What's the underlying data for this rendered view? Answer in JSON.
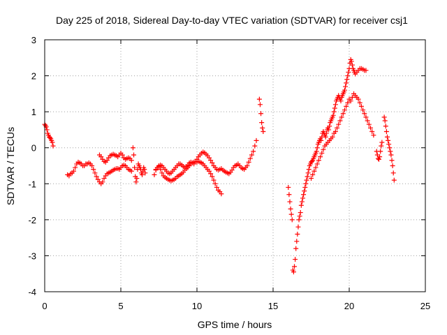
{
  "chart_data": {
    "type": "scatter",
    "title": "Day 225 of 2018, Sidereal Day-to-day VTEC variation (SDTVAR) for receiver csj1",
    "xlabel": "GPS time / hours",
    "ylabel": "SDTVAR / TECUs",
    "xlim": [
      0,
      25
    ],
    "ylim": [
      -4,
      3
    ],
    "xticks": [
      0,
      5,
      10,
      15,
      20,
      25
    ],
    "yticks": [
      -4,
      -3,
      -2,
      -1,
      0,
      1,
      2,
      3
    ],
    "grid": true,
    "marker": "+",
    "series": [
      {
        "name": "csj1",
        "color": "#ff0000",
        "x": [
          0.0,
          0.05,
          0.1,
          0.15,
          0.2,
          0.25,
          0.3,
          0.35,
          0.4,
          0.45,
          0.5,
          0.55,
          1.5,
          1.6,
          1.7,
          1.8,
          1.9,
          2.0,
          2.1,
          2.2,
          2.3,
          2.4,
          2.5,
          2.6,
          2.7,
          2.8,
          2.9,
          3.0,
          3.1,
          3.2,
          3.3,
          3.4,
          3.5,
          3.6,
          3.7,
          3.8,
          3.9,
          4.0,
          4.1,
          4.2,
          4.3,
          4.4,
          4.5,
          4.6,
          4.7,
          4.8,
          4.9,
          5.0,
          5.1,
          5.2,
          5.3,
          5.4,
          5.5,
          5.6,
          5.7,
          3.6,
          3.7,
          3.8,
          3.9,
          4.0,
          4.1,
          4.2,
          4.3,
          4.4,
          4.5,
          4.6,
          4.7,
          4.8,
          4.9,
          5.0,
          5.1,
          5.2,
          5.3,
          5.4,
          5.5,
          5.6,
          5.7,
          5.8,
          5.85,
          5.9,
          5.95,
          6.0,
          6.05,
          6.1,
          6.15,
          6.2,
          6.25,
          6.3,
          6.35,
          6.4,
          6.45,
          6.5,
          6.55,
          6.6,
          7.2,
          7.3,
          7.4,
          7.5,
          7.6,
          7.7,
          7.8,
          7.9,
          8.0,
          8.1,
          8.2,
          8.3,
          8.4,
          8.5,
          8.6,
          8.7,
          8.8,
          8.9,
          9.0,
          9.1,
          9.2,
          9.3,
          9.4,
          9.5,
          9.6,
          9.7,
          9.8,
          9.9,
          7.3,
          7.4,
          7.5,
          7.6,
          7.7,
          7.8,
          7.9,
          8.0,
          8.1,
          8.2,
          8.3,
          8.4,
          8.5,
          8.6,
          8.7,
          8.8,
          8.9,
          9.0,
          9.1,
          9.2,
          9.3,
          9.4,
          9.5,
          9.6,
          9.7,
          9.8,
          10.0,
          10.1,
          10.2,
          10.3,
          10.4,
          10.5,
          10.6,
          10.7,
          10.8,
          10.9,
          11.0,
          11.1,
          11.2,
          11.3,
          11.4,
          11.5,
          11.6,
          10.0,
          10.1,
          10.2,
          10.3,
          10.4,
          10.5,
          10.6,
          10.7,
          10.8,
          10.9,
          11.0,
          11.1,
          11.2,
          11.3,
          11.4,
          11.5,
          11.6,
          11.7,
          11.8,
          11.9,
          12.0,
          12.1,
          12.2,
          12.3,
          12.4,
          12.5,
          12.6,
          12.7,
          12.8,
          12.9,
          13.0,
          13.1,
          13.2,
          13.3,
          13.4,
          13.5,
          13.6,
          13.7,
          13.8,
          13.9,
          14.1,
          14.15,
          14.2,
          14.25,
          14.3,
          14.35,
          16.0,
          16.05,
          16.1,
          16.15,
          16.2,
          16.25,
          16.3,
          16.35,
          16.4,
          16.45,
          16.5,
          16.55,
          16.6,
          16.65,
          16.7,
          16.75,
          16.8,
          16.85,
          16.9,
          16.95,
          17.0,
          17.05,
          17.1,
          17.15,
          17.2,
          17.25,
          17.3,
          17.35,
          17.4,
          17.45,
          17.5,
          17.55,
          17.6,
          17.65,
          17.7,
          17.75,
          17.8,
          17.85,
          17.9,
          17.95,
          18.0,
          18.05,
          18.1,
          18.15,
          18.2,
          18.25,
          18.3,
          18.35,
          18.4,
          18.45,
          18.5,
          18.55,
          18.6,
          18.65,
          18.7,
          18.75,
          18.8,
          18.85,
          18.9,
          18.95,
          19.0,
          17.5,
          17.6,
          17.7,
          17.8,
          17.9,
          18.0,
          18.1,
          18.2,
          18.3,
          18.4,
          18.5,
          18.6,
          18.7,
          18.8,
          18.9,
          19.0,
          19.05,
          19.1,
          19.15,
          19.2,
          19.25,
          19.3,
          19.35,
          19.4,
          19.45,
          19.5,
          19.55,
          19.6,
          19.65,
          19.7,
          19.75,
          19.8,
          19.85,
          19.9,
          19.95,
          20.0,
          19.1,
          19.2,
          19.3,
          19.4,
          19.5,
          19.6,
          19.7,
          19.8,
          19.9,
          20.0,
          20.05,
          20.1,
          20.15,
          20.2,
          20.25,
          20.3,
          20.35,
          20.4,
          20.5,
          20.6,
          20.7,
          20.8,
          20.9,
          21.0,
          21.1,
          20.1,
          20.2,
          20.3,
          20.4,
          20.5,
          20.6,
          20.7,
          20.8,
          20.9,
          21.0,
          21.1,
          21.2,
          21.3,
          21.4,
          21.5,
          21.6,
          21.8,
          21.85,
          21.9,
          21.95,
          22.0,
          22.05,
          22.1,
          22.15,
          22.3,
          22.35,
          22.4,
          22.45,
          22.5,
          22.55,
          22.6,
          22.65,
          22.7,
          22.75,
          22.8,
          22.85,
          22.9,
          22.95
        ],
        "y": [
          0.65,
          0.62,
          0.58,
          0.5,
          0.4,
          0.35,
          0.3,
          0.28,
          0.25,
          0.2,
          0.15,
          0.05,
          -0.75,
          -0.78,
          -0.72,
          -0.7,
          -0.65,
          -0.55,
          -0.45,
          -0.4,
          -0.42,
          -0.45,
          -0.5,
          -0.5,
          -0.45,
          -0.45,
          -0.42,
          -0.45,
          -0.5,
          -0.6,
          -0.7,
          -0.8,
          -0.88,
          -0.95,
          -1.0,
          -0.95,
          -0.85,
          -0.78,
          -0.72,
          -0.7,
          -0.68,
          -0.65,
          -0.62,
          -0.6,
          -0.58,
          -0.58,
          -0.6,
          -0.55,
          -0.5,
          -0.48,
          -0.5,
          -0.55,
          -0.6,
          -0.62,
          -0.65,
          -0.2,
          -0.25,
          -0.32,
          -0.38,
          -0.4,
          -0.35,
          -0.28,
          -0.22,
          -0.2,
          -0.18,
          -0.2,
          -0.22,
          -0.25,
          -0.2,
          -0.15,
          -0.2,
          -0.28,
          -0.32,
          -0.3,
          -0.28,
          -0.3,
          -0.35,
          0.0,
          -0.2,
          -0.55,
          -0.8,
          -0.95,
          -0.85,
          -0.6,
          -0.45,
          -0.5,
          -0.55,
          -0.6,
          -0.7,
          -0.75,
          -0.65,
          -0.55,
          -0.6,
          -0.7,
          -0.75,
          -0.6,
          -0.55,
          -0.52,
          -0.6,
          -0.7,
          -0.78,
          -0.82,
          -0.85,
          -0.88,
          -0.9,
          -0.92,
          -0.9,
          -0.88,
          -0.85,
          -0.8,
          -0.78,
          -0.75,
          -0.72,
          -0.68,
          -0.62,
          -0.58,
          -0.55,
          -0.5,
          -0.45,
          -0.42,
          -0.4,
          -0.38,
          -0.62,
          -0.55,
          -0.5,
          -0.48,
          -0.5,
          -0.55,
          -0.6,
          -0.65,
          -0.7,
          -0.72,
          -0.7,
          -0.65,
          -0.6,
          -0.55,
          -0.5,
          -0.45,
          -0.45,
          -0.48,
          -0.52,
          -0.55,
          -0.52,
          -0.48,
          -0.42,
          -0.4,
          -0.42,
          -0.45,
          -0.32,
          -0.25,
          -0.2,
          -0.15,
          -0.12,
          -0.14,
          -0.18,
          -0.22,
          -0.28,
          -0.35,
          -0.42,
          -0.5,
          -0.55,
          -0.6,
          -0.62,
          -0.6,
          -0.58,
          -0.4,
          -0.38,
          -0.4,
          -0.42,
          -0.45,
          -0.5,
          -0.55,
          -0.6,
          -0.65,
          -0.72,
          -0.8,
          -0.9,
          -1.0,
          -1.1,
          -1.18,
          -1.22,
          -1.28,
          -0.62,
          -0.65,
          -0.68,
          -0.7,
          -0.72,
          -0.68,
          -0.62,
          -0.55,
          -0.5,
          -0.48,
          -0.45,
          -0.5,
          -0.55,
          -0.58,
          -0.6,
          -0.55,
          -0.5,
          -0.4,
          -0.3,
          -0.2,
          -0.1,
          0.05,
          0.2,
          1.35,
          1.2,
          0.95,
          0.7,
          0.55,
          0.45,
          -1.1,
          -1.3,
          -1.5,
          -1.7,
          -1.85,
          -2.0,
          -3.4,
          -3.45,
          -3.3,
          -3.1,
          -2.8,
          -2.6,
          -2.4,
          -2.2,
          -2.0,
          -1.9,
          -1.8,
          -1.6,
          -1.5,
          -1.4,
          -1.3,
          -1.2,
          -1.1,
          -1.0,
          -0.9,
          -0.8,
          -0.7,
          -0.6,
          -0.5,
          -0.45,
          -0.4,
          -0.38,
          -0.35,
          -0.3,
          -0.25,
          -0.2,
          -0.15,
          -0.1,
          0.0,
          0.1,
          0.15,
          0.2,
          0.25,
          0.2,
          0.3,
          0.4,
          0.45,
          0.4,
          0.35,
          0.3,
          0.4,
          0.5,
          0.55,
          0.5,
          0.6,
          0.7,
          0.75,
          0.8,
          0.85,
          0.9,
          1.0,
          -0.85,
          -0.75,
          -0.65,
          -0.55,
          -0.45,
          -0.35,
          -0.25,
          -0.15,
          -0.05,
          0.05,
          0.1,
          0.15,
          0.2,
          0.25,
          0.3,
          0.4,
          1.1,
          1.2,
          1.3,
          1.35,
          1.4,
          1.45,
          1.4,
          1.35,
          1.3,
          1.4,
          1.45,
          1.5,
          1.55,
          1.6,
          1.7,
          1.8,
          1.9,
          2.0,
          2.1,
          2.2,
          0.45,
          0.55,
          0.65,
          0.75,
          0.85,
          0.95,
          1.05,
          1.15,
          1.25,
          1.35,
          2.35,
          2.45,
          2.4,
          2.3,
          2.2,
          2.15,
          2.1,
          2.05,
          2.1,
          2.15,
          2.2,
          2.2,
          2.18,
          2.15,
          2.15,
          1.3,
          1.4,
          1.5,
          1.45,
          1.4,
          1.35,
          1.25,
          1.15,
          1.05,
          0.95,
          0.85,
          0.75,
          0.65,
          0.55,
          0.45,
          0.35,
          -0.1,
          -0.2,
          -0.3,
          -0.32,
          -0.25,
          -0.1,
          0.05,
          0.15,
          0.85,
          0.75,
          0.6,
          0.45,
          0.3,
          0.2,
          0.1,
          0.0,
          -0.1,
          -0.2,
          -0.35,
          -0.5,
          -0.7,
          -0.9
        ]
      }
    ]
  }
}
